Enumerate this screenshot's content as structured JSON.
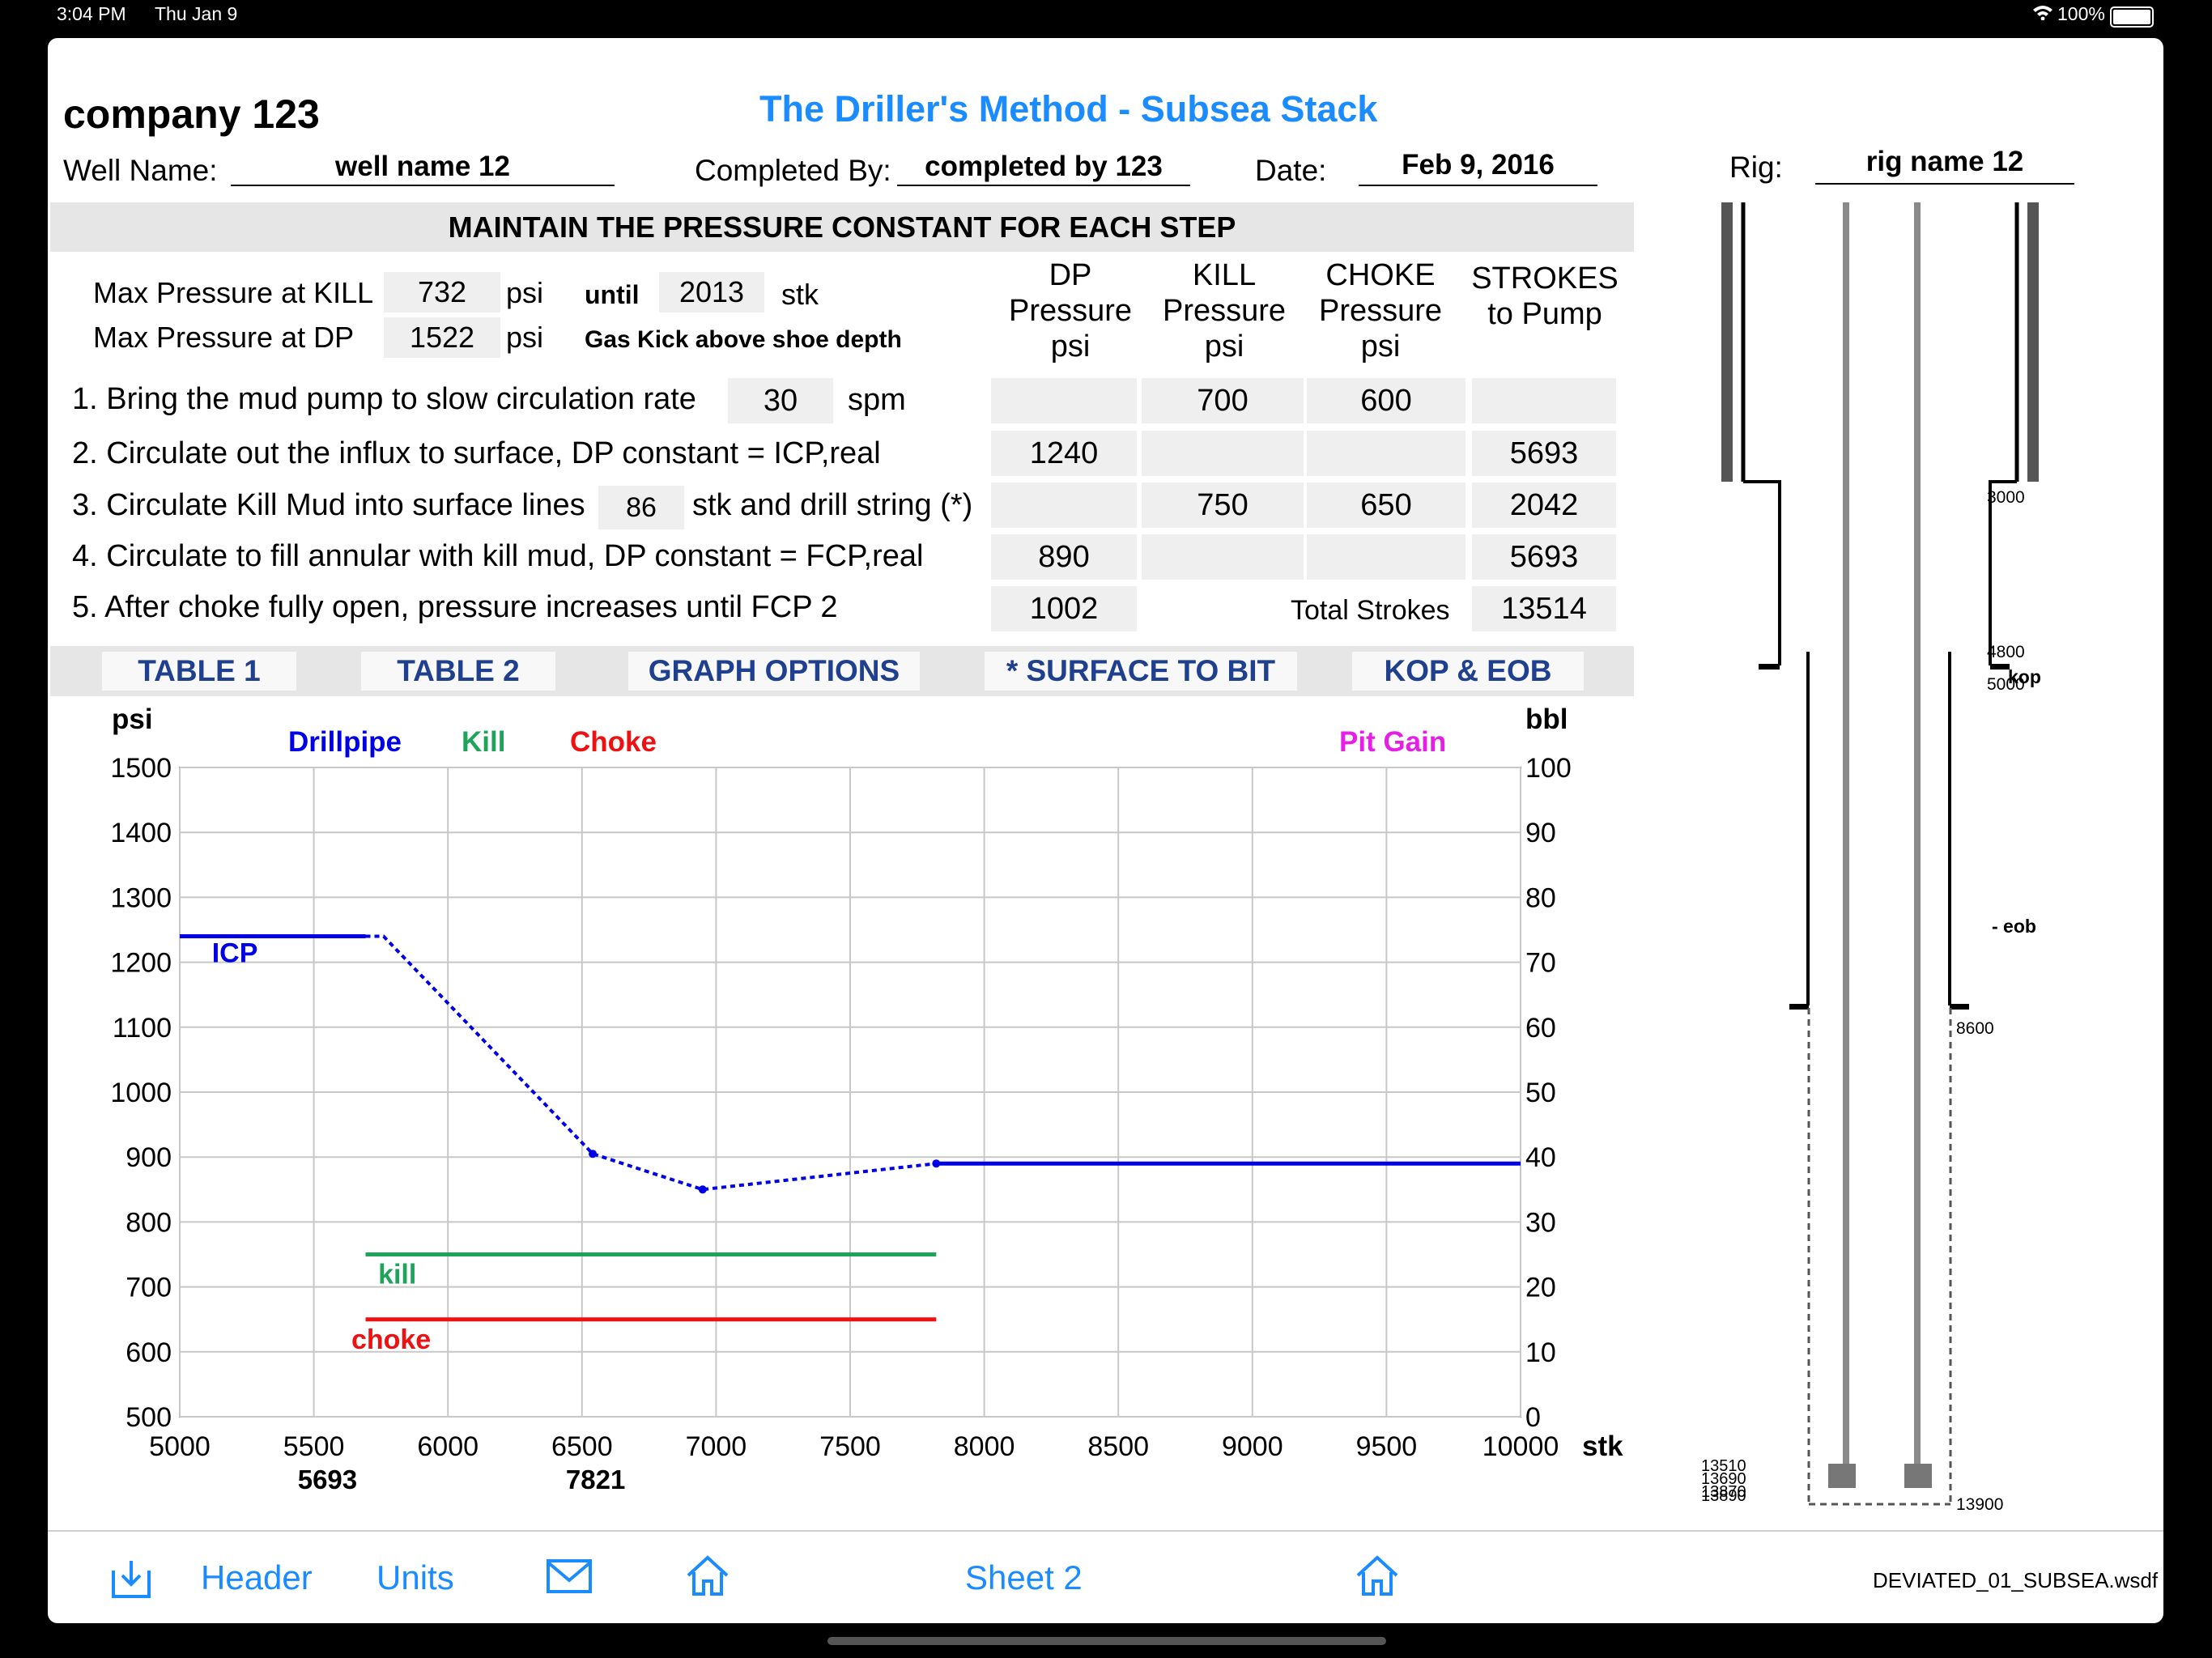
{
  "status": {
    "time": "3:04 PM",
    "date": "Thu Jan 9",
    "battery": "100%"
  },
  "header": {
    "company": "company 123",
    "title": "The Driller's Method - Subsea Stack",
    "well_label": "Well Name:",
    "well_value": "well name 12",
    "completed_label": "Completed By:",
    "completed_value": "completed by 123",
    "date_label": "Date:",
    "date_value": "Feb 9, 2016",
    "rig_label": "Rig:",
    "rig_value": "rig name 12"
  },
  "banner": "MAINTAIN THE PRESSURE CONSTANT FOR EACH STEP",
  "max": {
    "kill_label": "Max Pressure at KILL",
    "kill_value": "732",
    "psi": "psi",
    "until": "until",
    "until_value": "2013",
    "stk": "stk",
    "dp_label": "Max Pressure at DP",
    "dp_value": "1522",
    "note": "Gas Kick above shoe depth"
  },
  "columns": {
    "dp": [
      "DP",
      "Pressure",
      "psi"
    ],
    "kill": [
      "KILL",
      "Pressure",
      "psi"
    ],
    "choke": [
      "CHOKE",
      "Pressure",
      "psi"
    ],
    "strokes": [
      "STROKES",
      "to Pump"
    ]
  },
  "steps": {
    "s1_a": "1. Bring the mud pump to slow circulation rate",
    "s1_val": "30",
    "s1_unit": "spm",
    "s1_dp": "",
    "s1_kill": "700",
    "s1_choke": "600",
    "s1_str": "",
    "s2": "2. Circulate out the influx to surface, DP constant = ICP,real",
    "s2_dp": "1240",
    "s2_kill": "",
    "s2_choke": "",
    "s2_str": "5693",
    "s3_a": "3. Circulate Kill Mud into surface lines",
    "s3_val": "86",
    "s3_b": "stk and drill string (*)",
    "s3_dp": "",
    "s3_kill": "750",
    "s3_choke": "650",
    "s3_str": "2042",
    "s4": "4. Circulate to fill annular with kill mud, DP constant = FCP,real",
    "s4_dp": "890",
    "s4_kill": "",
    "s4_choke": "",
    "s4_str": "5693",
    "s5": "5. After choke fully open, pressure increases until FCP 2",
    "s5_dp": "1002",
    "total_label": "Total Strokes",
    "total_value": "13514"
  },
  "tabs": [
    "TABLE 1",
    "TABLE 2",
    "GRAPH OPTIONS",
    "* SURFACE TO BIT",
    "KOP & EOB"
  ],
  "chart_data": {
    "type": "line",
    "ylabel_left": "psi",
    "ylabel_right": "bbl",
    "xlabel": "stk",
    "xlim": [
      5000,
      10000
    ],
    "ylim": [
      500,
      1500
    ],
    "ylim_right": [
      0,
      100
    ],
    "xticks": [
      5000,
      5500,
      6000,
      6500,
      7000,
      7500,
      8000,
      8500,
      9000,
      9500,
      10000
    ],
    "yticks": [
      500,
      600,
      700,
      800,
      900,
      1000,
      1100,
      1200,
      1300,
      1400,
      1500
    ],
    "yticks_right": [
      0,
      10,
      20,
      30,
      40,
      50,
      60,
      70,
      80,
      90,
      100
    ],
    "grid": true,
    "legend": [
      "Drillpipe",
      "Kill",
      "Choke",
      "Pit Gain"
    ],
    "colors": {
      "drillpipe": "#0000e6",
      "kill": "#1fa35a",
      "choke": "#ee1111",
      "pitgain": "#e61fe6"
    },
    "series": [
      {
        "name": "Drillpipe",
        "segments": [
          {
            "style": "solid",
            "points": [
              [
                5000,
                1240
              ],
              [
                5693,
                1240
              ]
            ]
          },
          {
            "style": "dotted",
            "points": [
              [
                5693,
                1240
              ],
              [
                5760,
                1240
              ],
              [
                6540,
                905
              ],
              [
                6950,
                850
              ],
              [
                7821,
                890
              ]
            ]
          },
          {
            "style": "solid",
            "points": [
              [
                7821,
                890
              ],
              [
                10000,
                890
              ]
            ]
          }
        ]
      },
      {
        "name": "Kill",
        "segments": [
          {
            "style": "solid",
            "points": [
              [
                5693,
                750
              ],
              [
                7821,
                750
              ]
            ]
          }
        ]
      },
      {
        "name": "Choke",
        "segments": [
          {
            "style": "solid",
            "points": [
              [
                5693,
                650
              ],
              [
                7821,
                650
              ]
            ]
          }
        ]
      }
    ],
    "annotations": [
      {
        "text": "ICP",
        "x": 5120,
        "y": 1200
      },
      {
        "text": "kill",
        "x": 5740,
        "y": 705
      },
      {
        "text": "choke",
        "x": 5640,
        "y": 605
      }
    ],
    "marker_labels": [
      {
        "text": "5693",
        "x": 5440
      },
      {
        "text": "7821",
        "x": 6440
      }
    ]
  },
  "wellbore": {
    "depths": [
      "3000",
      "4800",
      "5000",
      "8600",
      "13900",
      "13510",
      "13690",
      "13870",
      "13890"
    ],
    "kop": "kop",
    "eob": "- eob"
  },
  "toolbar": {
    "header": "Header",
    "units": "Units",
    "sheet": "Sheet 2",
    "file": "DEVIATED_01_SUBSEA.wsdf"
  }
}
